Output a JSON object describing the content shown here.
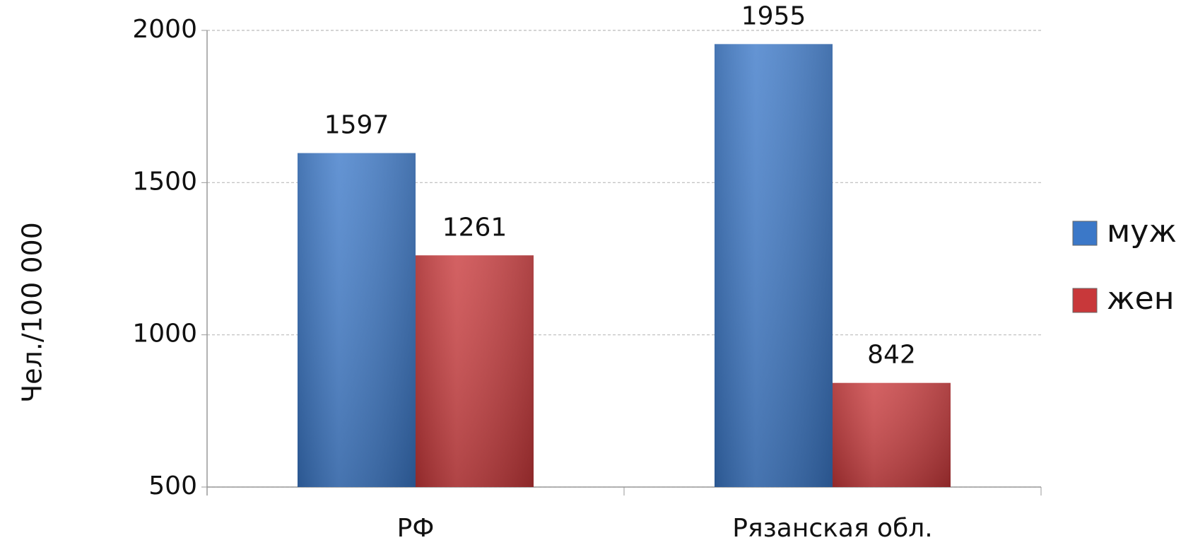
{
  "chart_data": {
    "type": "bar",
    "y_label": "Чел./100 000",
    "categories": [
      "РФ",
      "Рязанская обл."
    ],
    "series": [
      {
        "name": "муж",
        "color": "#3b78c8",
        "values": [
          1597,
          1955
        ]
      },
      {
        "name": "жен",
        "color": "#c8383a",
        "values": [
          1261,
          842
        ]
      }
    ],
    "ylim": [
      500,
      2000
    ],
    "yticks": [
      500,
      1000,
      1500,
      2000
    ],
    "grid": true,
    "legend": "right"
  }
}
